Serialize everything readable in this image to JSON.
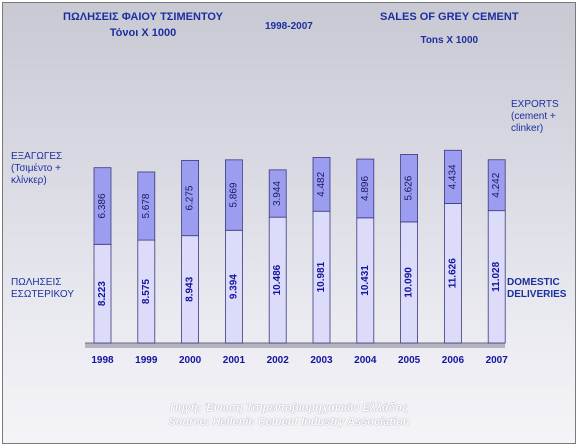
{
  "header": {
    "title_gr_line1": "ΠΩΛΗΣΕΙΣ ΦΑΙΟΥ ΤΣΙΜΕΝΤΟΥ",
    "title_gr_line2": "Τόνοι Χ 1000",
    "period": "1998-2007",
    "title_en_line1": "SALES OF GREY CEMENT",
    "title_en_line2": "Tons X 1000"
  },
  "labels_left": {
    "exports_line1": "ΕΞΑΓΩΓΕΣ",
    "exports_line2": "(Τσιμέντο +",
    "exports_line3": "κλίνκερ)",
    "domestic_line1": "ΠΩΛΗΣΕΙΣ",
    "domestic_line2": "ΕΣΩΤΕΡΙΚΟΥ"
  },
  "labels_right": {
    "exports_line1": "EXPORTS",
    "exports_line2": "(cement +",
    "exports_line3": "clinker)",
    "domestic_line1": "DOMESTIC",
    "domestic_line2": "DELIVERIES"
  },
  "footer": {
    "source_gr": "Πηγή: Ένωση Τσιμεντοβιομηχανιών Ελλάδος",
    "source_en": "Source: Hellenic Cement Industry Association"
  },
  "chart_data": {
    "type": "bar",
    "stacked": true,
    "categories": [
      "1998",
      "1999",
      "2000",
      "2001",
      "2002",
      "2003",
      "2004",
      "2005",
      "2006",
      "2007"
    ],
    "series": [
      {
        "name": "ΠΩΛΗΣΕΙΣ ΕΣΩΤΕΡΙΚΟΥ / DOMESTIC DELIVERIES",
        "values": [
          8.223,
          8.575,
          8.943,
          9.394,
          10.486,
          10.981,
          10.431,
          10.09,
          11.626,
          11.028
        ],
        "value_labels": [
          "8.223",
          "8.575",
          "8.943",
          "9.394",
          "10.486",
          "10.981",
          "10.431",
          "10.090",
          "11.626",
          "11.028"
        ],
        "color": "#dcdcfa"
      },
      {
        "name": "ΕΞΑΓΩΓΕΣ / EXPORTS (cement + clinker)",
        "values": [
          6.386,
          5.678,
          6.275,
          5.869,
          3.944,
          4.482,
          4.896,
          5.626,
          4.434,
          4.242
        ],
        "value_labels": [
          "6.386",
          "5.678",
          "6.275",
          "5.869",
          "3.944",
          "4.482",
          "4.896",
          "5.626",
          "4.434",
          "4.242"
        ],
        "color": "#9c9cf0"
      }
    ],
    "grid": false,
    "legend": "text labels left and right"
  }
}
